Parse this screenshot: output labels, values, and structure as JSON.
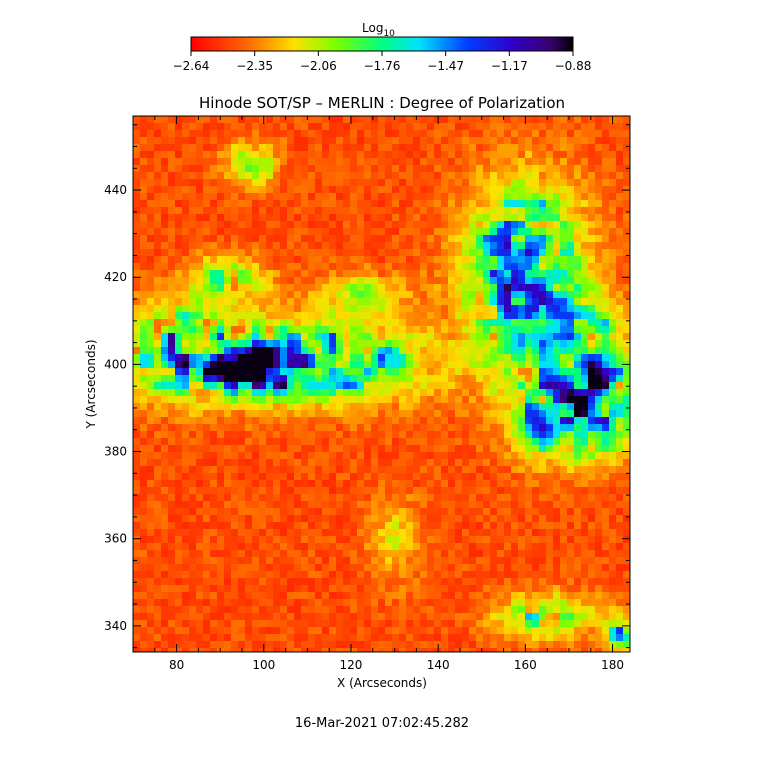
{
  "chart_data": {
    "type": "heatmap",
    "title": "Hinode SOT/SP – MERLIN : Degree of Polarization",
    "xlabel": "X (Arcseconds)",
    "ylabel": "Y (Arcseconds)",
    "xlim": [
      70,
      184
    ],
    "ylim": [
      334,
      457
    ],
    "x_ticks": [
      80,
      100,
      120,
      140,
      160,
      180
    ],
    "y_ticks": [
      340,
      360,
      380,
      400,
      420,
      440
    ],
    "colorbar": {
      "title": "Log",
      "title_subscript": "10",
      "range": [
        -2.64,
        -0.88
      ],
      "tick_labels": [
        "-2.64",
        "-2.35",
        "-2.06",
        "-1.76",
        "-1.47",
        "-1.17",
        "-0.88"
      ],
      "colormap": "rainbow (red → yellow → green → cyan → blue → purple → black)"
    },
    "features": [
      {
        "region": "left plage / pore",
        "x": [
          73,
          130
        ],
        "y": [
          388,
          412
        ],
        "value": "high"
      },
      {
        "region": "pore core",
        "x": [
          90,
          102
        ],
        "y": [
          395,
          401
        ],
        "value": "max"
      },
      {
        "region": "right network patch",
        "x": [
          150,
          184
        ],
        "y": [
          378,
          440
        ],
        "value": "high"
      },
      {
        "region": "bottom-right patch",
        "x": [
          150,
          184
        ],
        "y": [
          336,
          348
        ],
        "value": "moderate"
      },
      {
        "region": "background quiet sun",
        "value": "low"
      }
    ]
  },
  "timestamp": "16-Mar-2021 07:02:45.282",
  "colors": {
    "background": "#ffffff",
    "quiet_sun": "#ff2a00",
    "plage": "#1a10e8",
    "pore": "#1a0040"
  }
}
